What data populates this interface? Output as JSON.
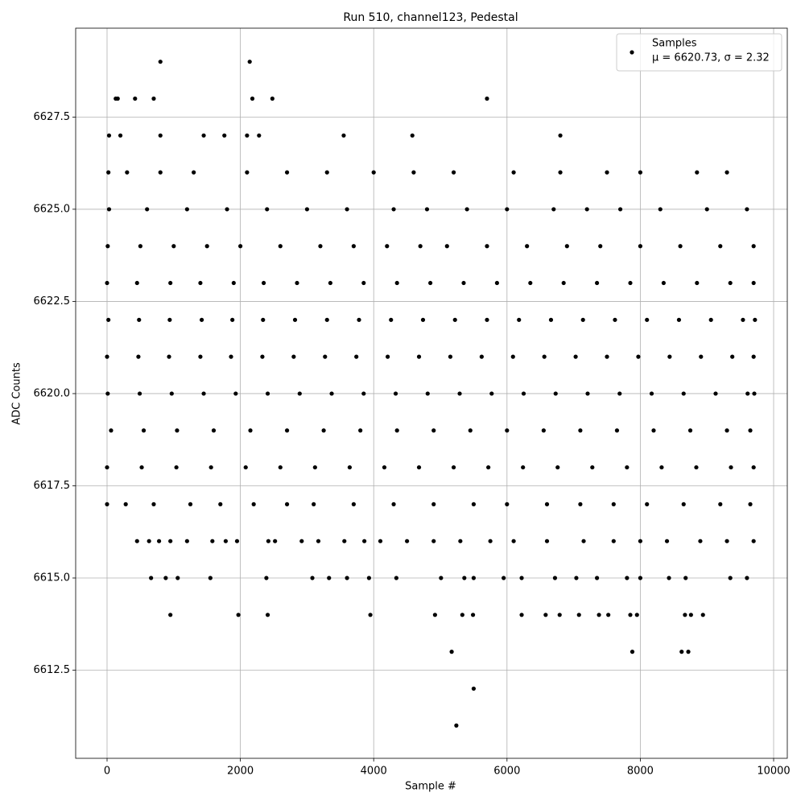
{
  "chart_data": {
    "type": "scatter",
    "title": "Run 510, channel123, Pedestal",
    "x_label": "Sample #",
    "y_label": "ADC Counts",
    "legend_note": "μ = 6620.73, σ = 2.32",
    "legend_position": "upper right",
    "grid": true,
    "xlim": [
      -471,
      10205
    ],
    "ylim": [
      6610.11,
      6629.91
    ],
    "xticks": [
      0,
      2000,
      4000,
      6000,
      8000,
      10000
    ],
    "yticks": [
      6612.5,
      {
        "value": 6615,
        "label": "6615.0"
      },
      6617.5,
      {
        "value": 6620,
        "label": "6620.0"
      },
      6622.5,
      {
        "value": 6625,
        "label": "6625.0"
      },
      6627.5
    ],
    "x": [
      800,
      2140,
      130,
      160,
      420,
      700,
      2180,
      2480,
      5700,
      30,
      200,
      800,
      1450,
      1760,
      2100,
      2280,
      3550,
      4580,
      6800,
      20,
      300,
      800,
      1300,
      2100,
      2700,
      3300,
      4000,
      4600,
      5200,
      6100,
      6800,
      7500,
      8000,
      8850,
      9300,
      30,
      600,
      1200,
      1800,
      2400,
      3000,
      3600,
      4300,
      4800,
      5400,
      6000,
      6700,
      7200,
      7700,
      8300,
      9000,
      9600,
      10,
      500,
      1000,
      1500,
      2000,
      2600,
      3200,
      3700,
      4200,
      4700,
      5100,
      5700,
      6300,
      6900,
      7400,
      8000,
      8600,
      9200,
      9700,
      0,
      450,
      950,
      1400,
      1900,
      2350,
      2850,
      3350,
      3850,
      4350,
      4850,
      5350,
      5850,
      6350,
      6850,
      7350,
      7850,
      8350,
      8850,
      9350,
      9700,
      20,
      480,
      940,
      1420,
      1880,
      2340,
      2820,
      3300,
      3780,
      4260,
      4740,
      5220,
      5700,
      6180,
      6660,
      7140,
      7620,
      8100,
      8580,
      9060,
      9540,
      9720,
      0,
      470,
      930,
      1400,
      1860,
      2330,
      2800,
      3270,
      3740,
      4210,
      4680,
      5150,
      5620,
      6090,
      6560,
      7030,
      7500,
      7970,
      8440,
      8910,
      9380,
      9700,
      10,
      490,
      970,
      1450,
      1930,
      2410,
      2890,
      3370,
      3850,
      4330,
      4810,
      5290,
      5770,
      6250,
      6730,
      7210,
      7690,
      8170,
      8650,
      9130,
      9610,
      9710,
      60,
      550,
      1050,
      1600,
      2150,
      2700,
      3250,
      3800,
      4350,
      4900,
      5450,
      6000,
      6550,
      7100,
      7650,
      8200,
      8750,
      9300,
      9650,
      0,
      520,
      1040,
      1560,
      2080,
      2600,
      3120,
      3640,
      4160,
      4680,
      5200,
      5720,
      6240,
      6760,
      7280,
      7800,
      8320,
      8840,
      9360,
      9700,
      0,
      280,
      700,
      1250,
      1700,
      2200,
      2700,
      3100,
      3700,
      4300,
      4900,
      5500,
      6000,
      6600,
      7100,
      7600,
      8100,
      8650,
      9200,
      9650,
      450,
      630,
      780,
      950,
      1200,
      1580,
      1780,
      1950,
      2420,
      2520,
      2920,
      3170,
      3560,
      3860,
      4100,
      4500,
      4900,
      5300,
      5750,
      6100,
      6600,
      7150,
      7600,
      8000,
      8400,
      8900,
      9300,
      9700,
      660,
      880,
      1060,
      1550,
      2390,
      3080,
      3330,
      3600,
      3930,
      4340,
      5010,
      5360,
      5500,
      5950,
      6220,
      6720,
      7040,
      7350,
      7800,
      8000,
      8430,
      8680,
      9350,
      9600,
      950,
      1970,
      2410,
      3950,
      4920,
      5330,
      5490,
      6220,
      6580,
      6790,
      7080,
      7380,
      7520,
      7850,
      7950,
      8670,
      8760,
      8940,
      5170,
      7880,
      8620,
      8720,
      5500,
      5240
    ],
    "series": [
      {
        "name": "Samples",
        "color": "#000000",
        "values": [
          6629,
          6629,
          6628,
          6628,
          6628,
          6628,
          6628,
          6628,
          6628,
          6627,
          6627,
          6627,
          6627,
          6627,
          6627,
          6627,
          6627,
          6627,
          6627,
          6626,
          6626,
          6626,
          6626,
          6626,
          6626,
          6626,
          6626,
          6626,
          6626,
          6626,
          6626,
          6626,
          6626,
          6626,
          6626,
          6625,
          6625,
          6625,
          6625,
          6625,
          6625,
          6625,
          6625,
          6625,
          6625,
          6625,
          6625,
          6625,
          6625,
          6625,
          6625,
          6625,
          6624,
          6624,
          6624,
          6624,
          6624,
          6624,
          6624,
          6624,
          6624,
          6624,
          6624,
          6624,
          6624,
          6624,
          6624,
          6624,
          6624,
          6624,
          6624,
          6623,
          6623,
          6623,
          6623,
          6623,
          6623,
          6623,
          6623,
          6623,
          6623,
          6623,
          6623,
          6623,
          6623,
          6623,
          6623,
          6623,
          6623,
          6623,
          6623,
          6623,
          6622,
          6622,
          6622,
          6622,
          6622,
          6622,
          6622,
          6622,
          6622,
          6622,
          6622,
          6622,
          6622,
          6622,
          6622,
          6622,
          6622,
          6622,
          6622,
          6622,
          6622,
          6622,
          6621,
          6621,
          6621,
          6621,
          6621,
          6621,
          6621,
          6621,
          6621,
          6621,
          6621,
          6621,
          6621,
          6621,
          6621,
          6621,
          6621,
          6621,
          6621,
          6621,
          6621,
          6621,
          6620,
          6620,
          6620,
          6620,
          6620,
          6620,
          6620,
          6620,
          6620,
          6620,
          6620,
          6620,
          6620,
          6620,
          6620,
          6620,
          6620,
          6620,
          6620,
          6620,
          6620,
          6620,
          6619,
          6619,
          6619,
          6619,
          6619,
          6619,
          6619,
          6619,
          6619,
          6619,
          6619,
          6619,
          6619,
          6619,
          6619,
          6619,
          6619,
          6619,
          6619,
          6618,
          6618,
          6618,
          6618,
          6618,
          6618,
          6618,
          6618,
          6618,
          6618,
          6618,
          6618,
          6618,
          6618,
          6618,
          6618,
          6618,
          6618,
          6618,
          6618,
          6617,
          6617,
          6617,
          6617,
          6617,
          6617,
          6617,
          6617,
          6617,
          6617,
          6617,
          6617,
          6617,
          6617,
          6617,
          6617,
          6617,
          6617,
          6617,
          6617,
          6616,
          6616,
          6616,
          6616,
          6616,
          6616,
          6616,
          6616,
          6616,
          6616,
          6616,
          6616,
          6616,
          6616,
          6616,
          6616,
          6616,
          6616,
          6616,
          6616,
          6616,
          6616,
          6616,
          6616,
          6616,
          6616,
          6616,
          6616,
          6615,
          6615,
          6615,
          6615,
          6615,
          6615,
          6615,
          6615,
          6615,
          6615,
          6615,
          6615,
          6615,
          6615,
          6615,
          6615,
          6615,
          6615,
          6615,
          6615,
          6615,
          6615,
          6615,
          6615,
          6614,
          6614,
          6614,
          6614,
          6614,
          6614,
          6614,
          6614,
          6614,
          6614,
          6614,
          6614,
          6614,
          6614,
          6614,
          6614,
          6614,
          6614,
          6613,
          6613,
          6613,
          6613,
          6612,
          6611
        ]
      }
    ]
  }
}
